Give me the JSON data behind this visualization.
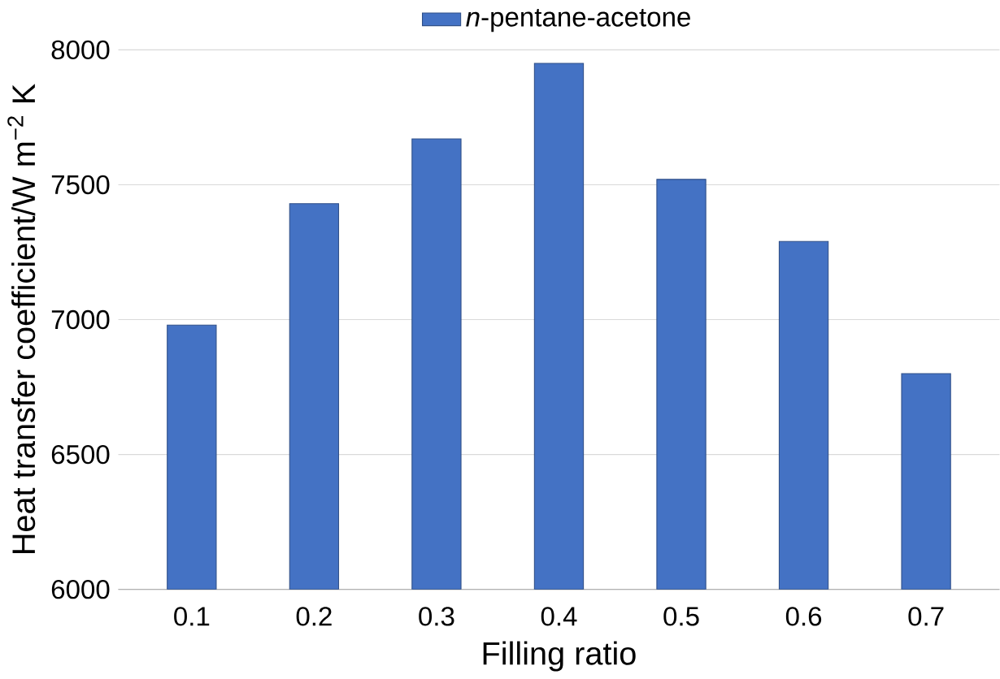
{
  "chart_data": {
    "type": "bar",
    "xlabel": "Filling ratio",
    "ylabel": "Heat transfer coefficient/W m$^{−2}$ K",
    "categories": [
      "0.1",
      "0.2",
      "0.3",
      "0.4",
      "0.5",
      "0.6",
      "0.7"
    ],
    "series": [
      {
        "name": "*n*-pentane-acetone",
        "color": "#4472c4",
        "values": [
          6980,
          7430,
          7670,
          7950,
          7520,
          7290,
          6800
        ]
      }
    ],
    "ylim": [
      6000,
      8000
    ],
    "yticks": [
      6000,
      6500,
      7000,
      7500,
      8000
    ],
    "grid": "y",
    "legend": "top"
  }
}
